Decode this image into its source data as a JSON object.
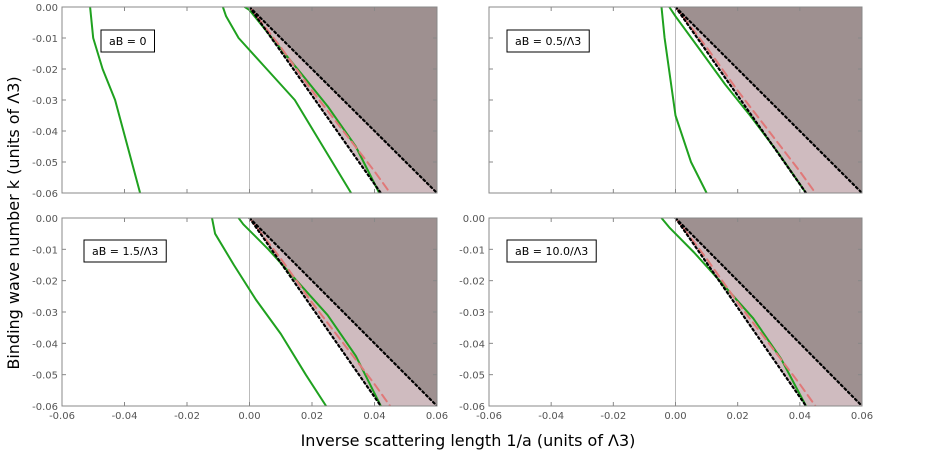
{
  "figure": {
    "ylabel": "Binding wave number k (units of Λ3)",
    "xlabel": "Inverse scattering length 1/a (units of Λ3)"
  },
  "colors": {
    "dark_region": "#9e9090",
    "light_region": "#cfbbbf",
    "green_curve": "#1fa11f",
    "red_dashed": "#e07878",
    "black_dotted": "#000000",
    "frame": "#888888"
  },
  "chart_data": [
    {
      "type": "line",
      "title": "",
      "annotation": "aB = 0",
      "xlim": [
        -0.06,
        0.06
      ],
      "ylim": [
        -0.06,
        0.0
      ],
      "x_ticks": [
        "-0.06",
        "-0.04",
        "-0.02",
        "0.00",
        "0.02",
        "0.04",
        "0.06"
      ],
      "y_ticks": [
        "0.00",
        "-0.01",
        "-0.02",
        "-0.03",
        "-0.04",
        "-0.05",
        "-0.06"
      ],
      "show_x_tick_labels": false,
      "show_y_tick_labels": true,
      "regions": {
        "dark": [
          [
            0.0,
            0.0
          ],
          [
            0.06,
            0.0
          ],
          [
            0.06,
            -0.06
          ]
        ],
        "light": [
          [
            0.0,
            0.0
          ],
          [
            0.06,
            -0.06
          ],
          [
            0.042,
            -0.06
          ]
        ]
      },
      "series": [
        {
          "style": "green",
          "x": [
            -0.051,
            -0.05,
            -0.047,
            -0.043,
            -0.039,
            -0.035
          ],
          "y": [
            0.0,
            -0.01,
            -0.02,
            -0.03,
            -0.045,
            -0.06
          ]
        },
        {
          "style": "green",
          "x": [
            -0.0085,
            -0.0075,
            -0.0035,
            0.0055,
            0.0145,
            0.0235,
            0.0325
          ],
          "y": [
            0.0,
            -0.003,
            -0.01,
            -0.02,
            -0.03,
            -0.045,
            -0.06
          ]
        },
        {
          "style": "green",
          "x": [
            -0.0015,
            0.0,
            0.008,
            0.017,
            0.025,
            0.034,
            0.0415
          ],
          "y": [
            0.0,
            -0.001,
            -0.011,
            -0.022,
            -0.032,
            -0.045,
            -0.06
          ]
        },
        {
          "style": "red_dashed",
          "x": [
            0.0,
            0.01,
            0.02,
            0.03,
            0.04,
            0.045
          ],
          "y": [
            0.0,
            -0.013,
            -0.027,
            -0.04,
            -0.053,
            -0.06
          ]
        },
        {
          "style": "black_dotted",
          "x": [
            0.0,
            0.042
          ],
          "y": [
            0.0,
            -0.06
          ]
        },
        {
          "style": "black_dotted",
          "x": [
            0.0,
            0.06
          ],
          "y": [
            0.0,
            -0.06
          ]
        }
      ]
    },
    {
      "type": "line",
      "title": "",
      "annotation": "aB = 0.5/Λ3",
      "xlim": [
        -0.06,
        0.06
      ],
      "ylim": [
        -0.06,
        0.0
      ],
      "x_ticks": [
        "-0.06",
        "-0.04",
        "-0.02",
        "0.00",
        "0.02",
        "0.04",
        "0.06"
      ],
      "y_ticks": [
        "0.00",
        "-0.01",
        "-0.02",
        "-0.03",
        "-0.04",
        "-0.05",
        "-0.06"
      ],
      "show_x_tick_labels": false,
      "show_y_tick_labels": false,
      "regions": {
        "dark": [
          [
            0.0,
            0.0
          ],
          [
            0.06,
            0.0
          ],
          [
            0.06,
            -0.06
          ]
        ],
        "light": [
          [
            0.0,
            0.0
          ],
          [
            0.06,
            -0.06
          ],
          [
            0.042,
            -0.06
          ]
        ]
      },
      "series": [
        {
          "style": "green",
          "x": [
            -0.0045,
            -0.0035,
            0.0,
            0.005,
            0.01
          ],
          "y": [
            0.0,
            -0.01,
            -0.035,
            -0.05,
            -0.06
          ]
        },
        {
          "style": "green",
          "x": [
            -0.002,
            0.0,
            0.008,
            0.016,
            0.024,
            0.033,
            0.042
          ],
          "y": [
            0.0,
            -0.003,
            -0.014,
            -0.025,
            -0.035,
            -0.047,
            -0.06
          ]
        },
        {
          "style": "red_dashed",
          "x": [
            0.0,
            0.01,
            0.02,
            0.03,
            0.04,
            0.045
          ],
          "y": [
            0.0,
            -0.013,
            -0.027,
            -0.04,
            -0.053,
            -0.06
          ]
        },
        {
          "style": "black_dotted",
          "x": [
            0.0,
            0.042
          ],
          "y": [
            0.0,
            -0.06
          ]
        },
        {
          "style": "black_dotted",
          "x": [
            0.0,
            0.06
          ],
          "y": [
            0.0,
            -0.06
          ]
        }
      ]
    },
    {
      "type": "line",
      "title": "",
      "annotation": "aB = 1.5/Λ3",
      "xlim": [
        -0.06,
        0.06
      ],
      "ylim": [
        -0.06,
        0.0
      ],
      "x_ticks": [
        "-0.06",
        "-0.04",
        "-0.02",
        "0.00",
        "0.02",
        "0.04",
        "0.06"
      ],
      "y_ticks": [
        "0.00",
        "-0.01",
        "-0.02",
        "-0.03",
        "-0.04",
        "-0.05",
        "-0.06"
      ],
      "show_x_tick_labels": true,
      "show_y_tick_labels": true,
      "regions": {
        "dark": [
          [
            0.0,
            0.0
          ],
          [
            0.06,
            0.0
          ],
          [
            0.06,
            -0.06
          ]
        ],
        "light": [
          [
            0.0,
            0.0
          ],
          [
            0.06,
            -0.06
          ],
          [
            0.042,
            -0.06
          ]
        ]
      },
      "series": [
        {
          "style": "green",
          "x": [
            -0.012,
            -0.011,
            -0.005,
            0.002,
            0.01,
            0.018,
            0.0245
          ],
          "y": [
            0.0,
            -0.005,
            -0.015,
            -0.026,
            -0.037,
            -0.05,
            -0.06
          ]
        },
        {
          "style": "green",
          "x": [
            -0.0035,
            -0.002,
            0.006,
            0.016,
            0.025,
            0.034,
            0.042
          ],
          "y": [
            0.0,
            -0.002,
            -0.01,
            -0.021,
            -0.031,
            -0.044,
            -0.06
          ]
        },
        {
          "style": "red_dashed",
          "x": [
            0.0,
            0.01,
            0.02,
            0.03,
            0.04,
            0.045
          ],
          "y": [
            0.0,
            -0.013,
            -0.027,
            -0.04,
            -0.053,
            -0.06
          ]
        },
        {
          "style": "black_dotted",
          "x": [
            0.0,
            0.042
          ],
          "y": [
            0.0,
            -0.06
          ]
        },
        {
          "style": "black_dotted",
          "x": [
            0.0,
            0.06
          ],
          "y": [
            0.0,
            -0.06
          ]
        }
      ]
    },
    {
      "type": "line",
      "title": "",
      "annotation": "aB = 10.0/Λ3",
      "xlim": [
        -0.06,
        0.06
      ],
      "ylim": [
        -0.06,
        0.0
      ],
      "x_ticks": [
        "-0.06",
        "-0.04",
        "-0.02",
        "0.00",
        "0.02",
        "0.04",
        "0.06"
      ],
      "y_ticks": [
        "0.00",
        "-0.01",
        "-0.02",
        "-0.03",
        "-0.04",
        "-0.05",
        "-0.06"
      ],
      "show_x_tick_labels": true,
      "show_y_tick_labels": true,
      "regions": {
        "dark": [
          [
            0.0,
            0.0
          ],
          [
            0.06,
            0.0
          ],
          [
            0.06,
            -0.06
          ]
        ],
        "light": [
          [
            0.0,
            0.0
          ],
          [
            0.06,
            -0.06
          ],
          [
            0.042,
            -0.06
          ]
        ]
      },
      "series": [
        {
          "style": "green",
          "x": [
            -0.0045,
            -0.002,
            0.006,
            0.016,
            0.025,
            0.034,
            0.042
          ],
          "y": [
            0.0,
            -0.003,
            -0.011,
            -0.022,
            -0.032,
            -0.045,
            -0.06
          ]
        },
        {
          "style": "red_dashed",
          "x": [
            0.0,
            0.01,
            0.02,
            0.03,
            0.04,
            0.045
          ],
          "y": [
            0.0,
            -0.013,
            -0.027,
            -0.04,
            -0.053,
            -0.06
          ]
        },
        {
          "style": "black_dotted",
          "x": [
            0.0,
            0.042
          ],
          "y": [
            0.0,
            -0.06
          ]
        },
        {
          "style": "black_dotted",
          "x": [
            0.0,
            0.06
          ],
          "y": [
            0.0,
            -0.06
          ]
        }
      ]
    }
  ]
}
